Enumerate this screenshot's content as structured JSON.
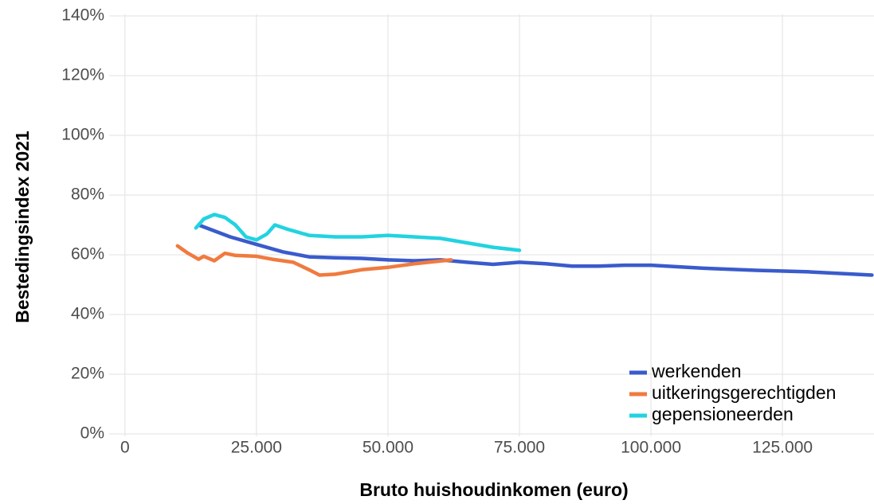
{
  "chart_data": {
    "type": "line",
    "x_label": "Bruto huishoudinkomen (euro)",
    "y_label": "Bestedingsindex 2021",
    "xlim": [
      -3000,
      142400
    ],
    "ylim": [
      0,
      140
    ],
    "xticks": [
      {
        "value": 0,
        "label": "0"
      },
      {
        "value": 25000,
        "label": "25.000"
      },
      {
        "value": 50000,
        "label": "50.000"
      },
      {
        "value": 75000,
        "label": "75.000"
      },
      {
        "value": 100000,
        "label": "100.000"
      },
      {
        "value": 125000,
        "label": "125.000"
      }
    ],
    "yticks": [
      {
        "value": 0,
        "label": "0%"
      },
      {
        "value": 20,
        "label": "20%"
      },
      {
        "value": 40,
        "label": "40%"
      },
      {
        "value": 60,
        "label": "60%"
      },
      {
        "value": 80,
        "label": "80%"
      },
      {
        "value": 100,
        "label": "100%"
      },
      {
        "value": 120,
        "label": "120%"
      },
      {
        "value": 140,
        "label": "140%"
      }
    ],
    "grid": true,
    "legend": "bottom-right",
    "series": [
      {
        "name": "werkenden",
        "color": "#3a5bcc",
        "x": [
          14000,
          20000,
          25000,
          30000,
          35000,
          40000,
          45000,
          50000,
          55000,
          60000,
          65000,
          70000,
          75000,
          80000,
          85000,
          90000,
          95000,
          100000,
          110000,
          120000,
          130000,
          142000
        ],
        "values": [
          70,
          66,
          63.5,
          61,
          59.3,
          59,
          58.8,
          58.3,
          58,
          58.3,
          57.5,
          56.8,
          57.5,
          57,
          56.2,
          56.2,
          56.5,
          56.5,
          55.5,
          54.8,
          54.3,
          53.2
        ]
      },
      {
        "name": "uitkeringsgerechtigden",
        "color": "#f07a3f",
        "x": [
          10000,
          12000,
          14000,
          15000,
          17000,
          19000,
          21000,
          25000,
          28000,
          32000,
          35000,
          37000,
          40000,
          45000,
          50000,
          55000,
          62000
        ],
        "values": [
          63,
          60.5,
          58.5,
          59.5,
          58,
          60.5,
          59.8,
          59.5,
          58.5,
          57.5,
          55,
          53.2,
          53.5,
          55,
          55.8,
          57,
          58.3
        ]
      },
      {
        "name": "gepensioneerden",
        "color": "#22d3e0",
        "x": [
          13500,
          15000,
          17000,
          19000,
          21000,
          23000,
          25000,
          27000,
          28500,
          31000,
          35000,
          40000,
          45000,
          50000,
          55000,
          60000,
          65000,
          70000,
          75000
        ],
        "values": [
          69,
          72,
          73.5,
          72.5,
          70,
          66,
          65,
          67,
          70,
          68.5,
          66.5,
          66,
          66,
          66.5,
          66,
          65.5,
          64,
          62.5,
          61.5
        ]
      }
    ]
  }
}
